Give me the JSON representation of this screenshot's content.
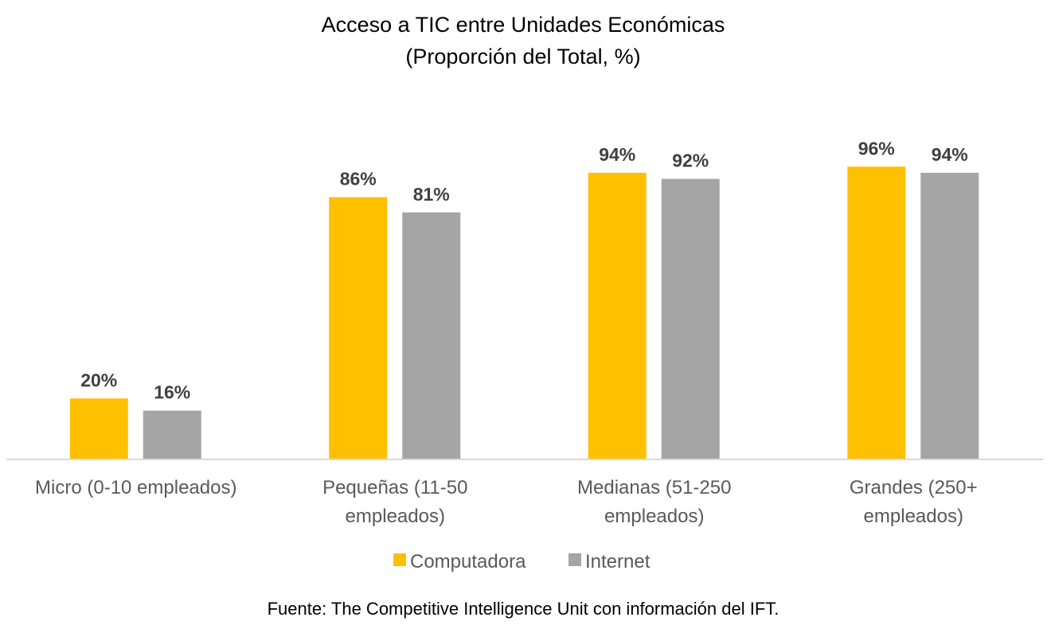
{
  "chart_data": {
    "type": "bar",
    "title": "Acceso a TIC entre Unidades Económicas",
    "subtitle": "(Proporción del Total, %)",
    "categories": [
      [
        "Micro (0-10 empleados)"
      ],
      [
        "Pequeñas (11-50",
        "empleados)"
      ],
      [
        "Medianas (51-250",
        "empleados)"
      ],
      [
        "Grandes (250+",
        "empleados)"
      ]
    ],
    "series": [
      {
        "name": "Computadora",
        "color": "#FFC000",
        "values": [
          20,
          86,
          94,
          96
        ],
        "labels": [
          "20%",
          "86%",
          "94%",
          "96%"
        ]
      },
      {
        "name": "Internet",
        "color": "#A5A5A5",
        "values": [
          16,
          81,
          92,
          94
        ],
        "labels": [
          "16%",
          "81%",
          "92%",
          "94%"
        ]
      }
    ],
    "xlabel": "",
    "ylabel": "",
    "ylim": [
      0,
      100
    ],
    "grid": false,
    "legend": "bottom",
    "source": "Fuente: The Competitive Intelligence Unit con información del IFT."
  }
}
